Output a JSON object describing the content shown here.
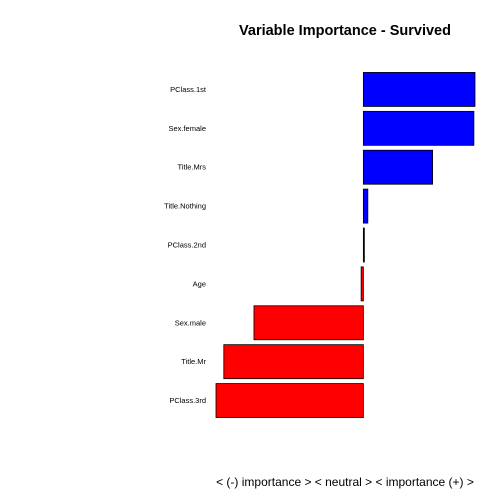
{
  "chart_data": {
    "type": "bar",
    "orientation": "horizontal",
    "title": "Variable Importance - Survived",
    "xlabel": "< (-) importance >  < neutral >  < importance (+) >",
    "ylabel": "",
    "categories": [
      "PClass.1st",
      "Sex.female",
      "Title.Mrs",
      "Title.Nothing",
      "PClass.2nd",
      "Age",
      "Sex.male",
      "Title.Mr",
      "PClass.3rd"
    ],
    "values": [
      1.0,
      0.99,
      0.62,
      0.04,
      0.005,
      -0.02,
      -0.98,
      -1.25,
      -1.32
    ],
    "xlim": [
      -1.32,
      1.0
    ],
    "colors": {
      "positive": "#0000ff",
      "negative": "#ff0000",
      "edge": "#000000"
    },
    "grid": false,
    "legend": "none"
  }
}
